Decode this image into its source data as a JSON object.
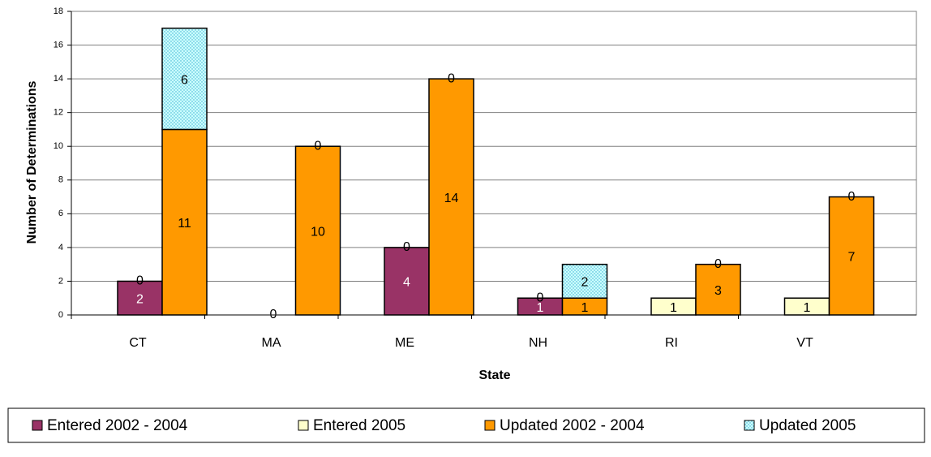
{
  "chart_data": {
    "type": "stacked_bar",
    "x_label": "State",
    "y_label": "Number of Determinations",
    "categories": [
      "CT",
      "MA",
      "ME",
      "NH",
      "RI",
      "VT"
    ],
    "series": [
      {
        "name": "Entered 2002 - 2004",
        "color": "#993366",
        "label_color": "#ffffff",
        "stack": 0,
        "values": [
          2,
          0,
          4,
          1,
          0,
          0
        ]
      },
      {
        "name": "Entered 2005",
        "color": "#ffffcc",
        "label_color": "#000000",
        "stack": 0,
        "values": [
          0,
          0,
          0,
          0,
          1,
          1
        ]
      },
      {
        "name": "Updated 2002 - 2004",
        "color": "#ff9900",
        "label_color": "#000000",
        "stack": 1,
        "values": [
          11,
          10,
          14,
          1,
          3,
          7
        ]
      },
      {
        "name": "Updated 2005",
        "color": "#ccffff",
        "label_color": "#000000",
        "stack": 1,
        "hatch": true,
        "values": [
          6,
          0,
          0,
          2,
          0,
          0
        ]
      }
    ],
    "ylim": [
      0,
      18
    ],
    "yticks": [
      0,
      2,
      4,
      6,
      8,
      10,
      12,
      14,
      16,
      18
    ],
    "grid": true,
    "legend": "bottom"
  }
}
